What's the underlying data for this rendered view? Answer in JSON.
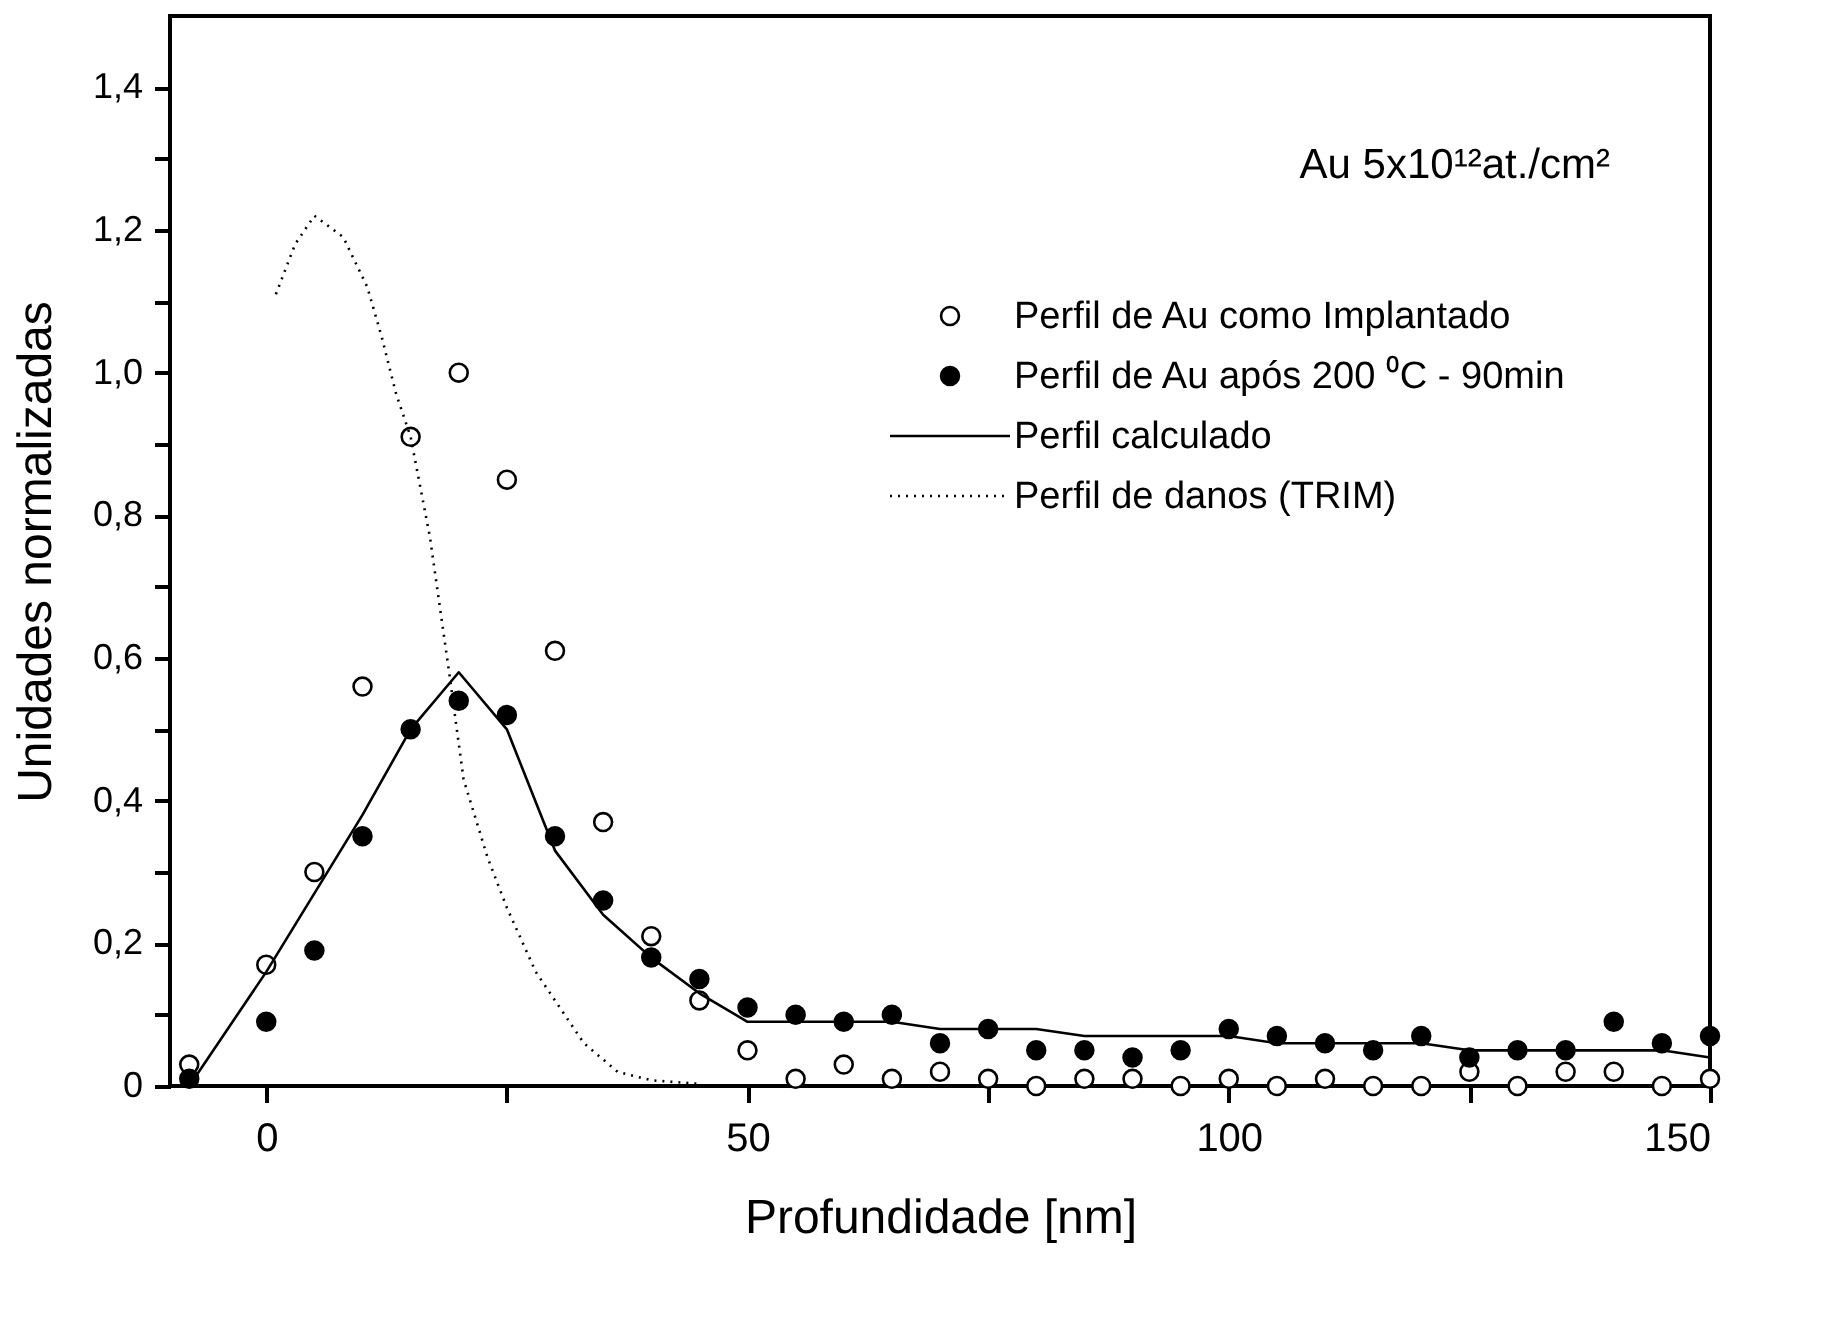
{
  "chart_data": {
    "type": "scatter",
    "xlabel": "Profundidade [nm]",
    "ylabel": "Unidades normalizadas",
    "annotations": [
      "Au  5x10¹²at./cm²"
    ],
    "xlim": [
      -10,
      150
    ],
    "xticks": [
      0,
      {
        "value": 25,
        "label": null
      },
      50,
      {
        "value": 75,
        "label": null
      },
      100,
      {
        "value": 125,
        "label": null
      },
      150
    ],
    "ylim": [
      0,
      1.5
    ],
    "yticks": [
      {
        "value": 0,
        "label": "0"
      },
      {
        "value": 0.1,
        "label": null
      },
      {
        "value": 0.2,
        "label": "0,2"
      },
      {
        "value": 0.3,
        "label": null
      },
      {
        "value": 0.4,
        "label": "0,4"
      },
      {
        "value": 0.5,
        "label": null
      },
      {
        "value": 0.6,
        "label": "0,6"
      },
      {
        "value": 0.7,
        "label": null
      },
      {
        "value": 0.8,
        "label": "0,8"
      },
      {
        "value": 0.9,
        "label": null
      },
      {
        "value": 1.0,
        "label": "1,0"
      },
      {
        "value": 1.1,
        "label": null
      },
      {
        "value": 1.2,
        "label": "1,2"
      },
      {
        "value": 1.3,
        "label": null
      },
      {
        "value": 1.4,
        "label": "1,4"
      }
    ],
    "grid": false,
    "legend": "top right",
    "series": [
      {
        "name": "Perfil de Au como Implantado",
        "marker": "circle",
        "color": "#ffffff",
        "x": [
          -8,
          0,
          5,
          10,
          15,
          20,
          25,
          30,
          35,
          40,
          45,
          50,
          55,
          60,
          65,
          70,
          75,
          80,
          85,
          90,
          95,
          100,
          105,
          110,
          115,
          120,
          125,
          130,
          135,
          140,
          145,
          150
        ],
        "values": [
          0.03,
          0.17,
          0.3,
          0.56,
          0.91,
          1.0,
          0.85,
          0.61,
          0.37,
          0.21,
          0.12,
          0.05,
          0.01,
          0.03,
          0.01,
          0.02,
          0.01,
          0.0,
          0.01,
          0.01,
          0.0,
          0.01,
          0.0,
          0.01,
          0.0,
          0.0,
          0.02,
          0.0,
          0.02,
          0.02,
          0.0,
          0.01
        ]
      },
      {
        "name": "Perfil de Au após 200 ⁰C - 90min",
        "marker": "circle",
        "color": "#000000",
        "x": [
          -8,
          0,
          5,
          10,
          15,
          20,
          25,
          30,
          35,
          40,
          45,
          50,
          55,
          60,
          65,
          70,
          75,
          80,
          85,
          90,
          95,
          100,
          105,
          110,
          115,
          120,
          125,
          130,
          135,
          140,
          145,
          150
        ],
        "values": [
          0.01,
          0.09,
          0.19,
          0.35,
          0.5,
          0.54,
          0.52,
          0.35,
          0.26,
          0.18,
          0.15,
          0.11,
          0.1,
          0.09,
          0.1,
          0.06,
          0.08,
          0.05,
          0.05,
          0.04,
          0.05,
          0.08,
          0.07,
          0.06,
          0.05,
          0.07,
          0.04,
          0.05,
          0.05,
          0.09,
          0.06,
          0.07
        ]
      },
      {
        "name": "Perfil calculado",
        "type": "line",
        "marker": "none",
        "line_style": "solid",
        "color": "#000000",
        "x": [
          -8,
          0,
          5,
          10,
          15,
          20,
          25,
          30,
          35,
          40,
          45,
          50,
          60,
          65,
          70,
          80,
          85,
          100,
          105,
          120,
          125,
          145,
          150
        ],
        "values": [
          0.0,
          0.16,
          0.27,
          0.38,
          0.5,
          0.58,
          0.5,
          0.33,
          0.24,
          0.18,
          0.13,
          0.09,
          0.09,
          0.09,
          0.08,
          0.08,
          0.07,
          0.07,
          0.06,
          0.06,
          0.05,
          0.05,
          0.04
        ]
      },
      {
        "name": "Perfil de danos (TRIM)",
        "type": "line",
        "marker": "none",
        "line_style": "dotted",
        "color": "#000000",
        "x": [
          1,
          3,
          5,
          8,
          10.5,
          12,
          13.5,
          15,
          17,
          19,
          20.5,
          23,
          25,
          28,
          30,
          33,
          36.5,
          40,
          45
        ],
        "values": [
          1.11,
          1.18,
          1.22,
          1.19,
          1.12,
          1.05,
          0.97,
          0.91,
          0.77,
          0.58,
          0.43,
          0.32,
          0.25,
          0.16,
          0.12,
          0.06,
          0.02,
          0.008,
          0.003
        ]
      }
    ]
  }
}
